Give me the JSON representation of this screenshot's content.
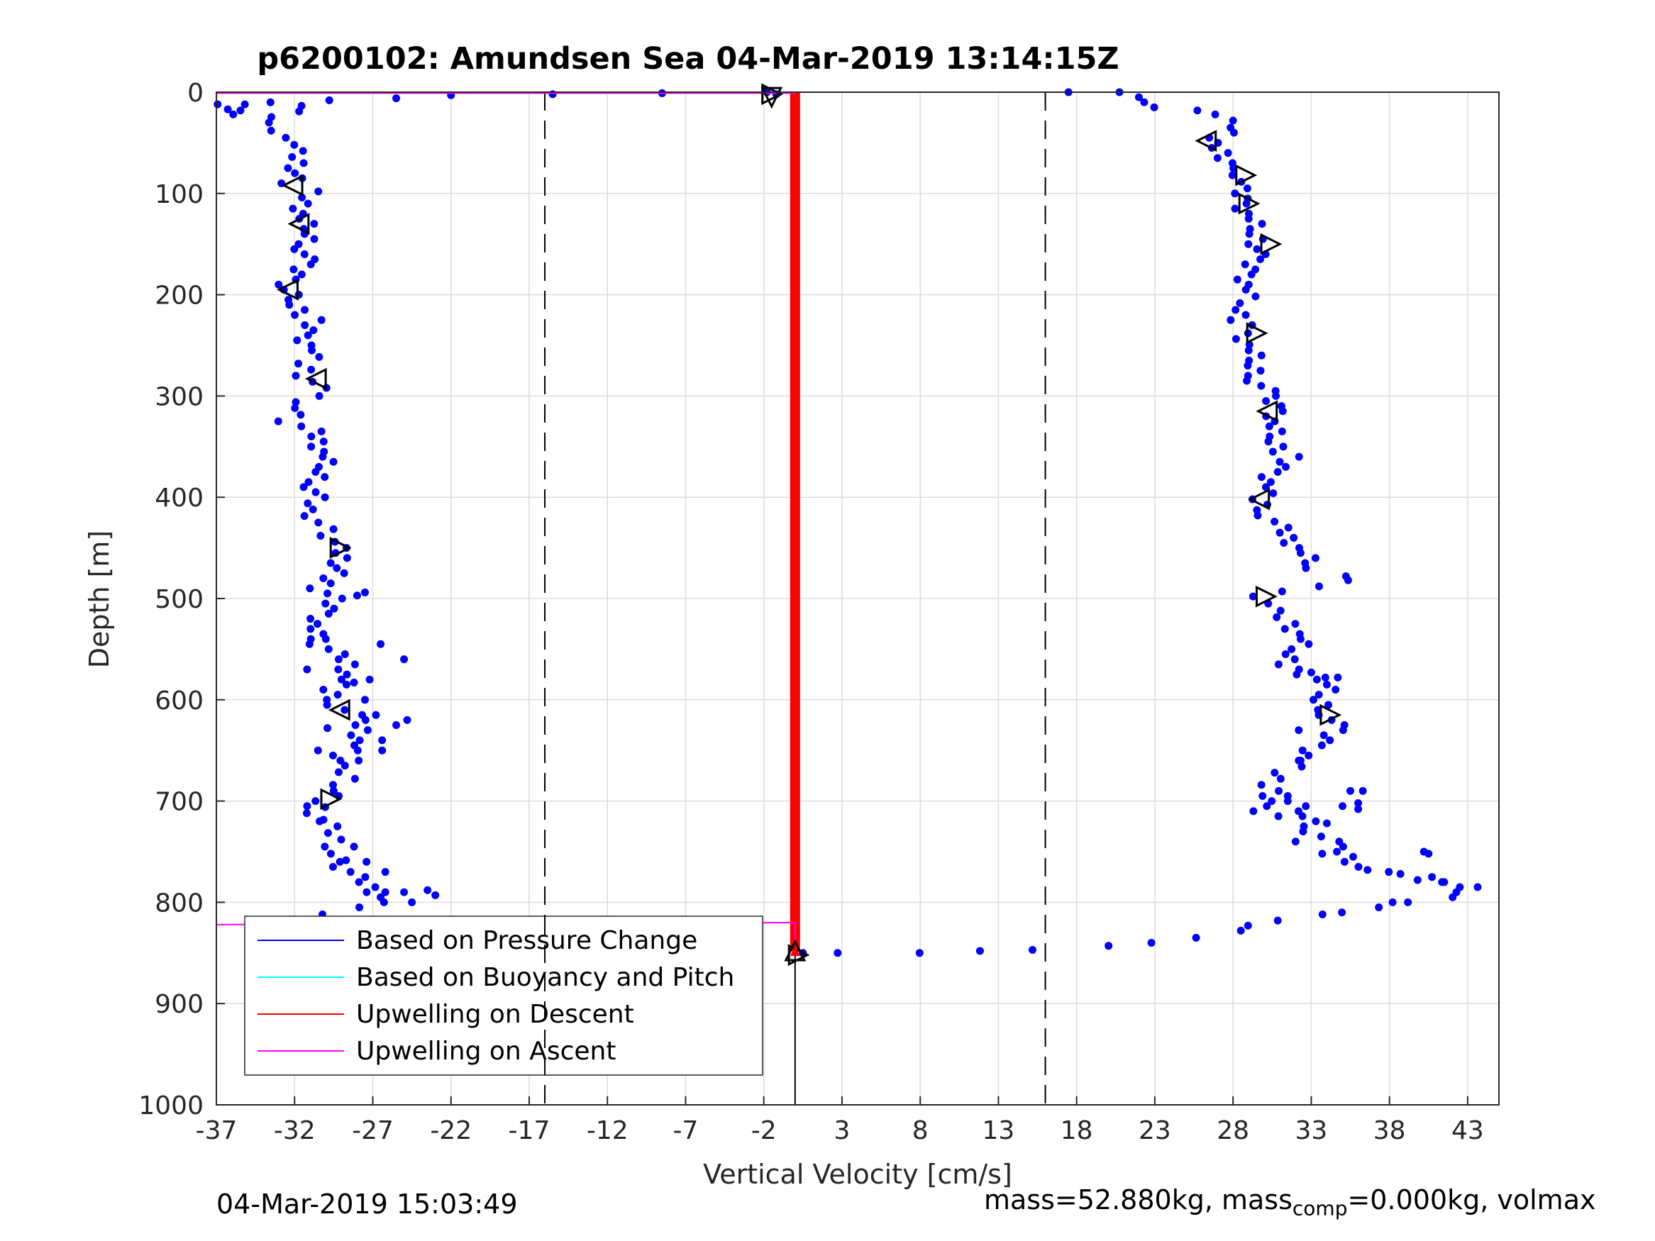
{
  "title": "p6200102: Amundsen Sea 04-Mar-2019 13:14:15Z",
  "footer": {
    "timestamp": "04-Mar-2019 15:03:49",
    "mass_text": "mass=52.880kg, mass",
    "mass_sub": "comp",
    "mass_rest": "=0.000kg, volmax"
  },
  "colors": {
    "pressure": "#0000ff",
    "buoyancy": "#00ffff",
    "upwelling_descent": "#ff0000",
    "upwelling_ascent": "#ff00ff",
    "markers": "#000000",
    "grid": "#dddddd"
  },
  "chart_data": {
    "type": "scatter",
    "title": "p6200102: Amundsen Sea 04-Mar-2019 13:14:15Z",
    "xlabel": "Vertical Velocity [cm/s]",
    "ylabel": "Depth [m]",
    "xlim": [
      -37,
      45
    ],
    "ylim": [
      0,
      1000
    ],
    "y_reversed": true,
    "xticks": [
      "-37",
      "-32",
      "-27",
      "-22",
      "-17",
      "-12",
      "-7",
      "-2",
      "3",
      "8",
      "13",
      "18",
      "23",
      "28",
      "33",
      "38",
      "43"
    ],
    "yticks": [
      "0",
      "100",
      "200",
      "300",
      "400",
      "500",
      "600",
      "700",
      "800",
      "900",
      "1000"
    ],
    "grid": true,
    "legend_position": "lower-left",
    "legend": [
      {
        "label": "Based on Pressure Change",
        "color": "#0000ff"
      },
      {
        "label": "Based on Buoyancy and Pitch",
        "color": "#00ffff"
      },
      {
        "label": "Upwelling on Descent",
        "color": "#ff0000"
      },
      {
        "label": "Upwelling on Ascent",
        "color": "#ff00ff"
      }
    ],
    "reference_lines_x": [
      -16,
      16
    ],
    "descent_dive_profile": [
      [
        -36.2,
        12
      ],
      [
        -36,
        18
      ],
      [
        -36.1,
        22
      ],
      [
        -35,
        12
      ],
      [
        -33,
        10
      ],
      [
        -30.5,
        8
      ],
      [
        -34,
        30
      ],
      [
        -33.5,
        38
      ],
      [
        -32.2,
        45
      ],
      [
        -31.3,
        52
      ],
      [
        -32,
        58
      ],
      [
        -31.6,
        70
      ],
      [
        -31.8,
        80
      ],
      [
        -32.3,
        90
      ],
      [
        -31.2,
        98
      ],
      [
        -31.5,
        110
      ],
      [
        -31.7,
        125
      ],
      [
        -31,
        140
      ],
      [
        -31.3,
        155
      ],
      [
        -31.5,
        170
      ],
      [
        -32.1,
        185
      ],
      [
        -32.5,
        195
      ],
      [
        -31.8,
        210
      ],
      [
        -31,
        225
      ],
      [
        -31.5,
        240
      ],
      [
        -30.9,
        255
      ],
      [
        -31.4,
        268
      ],
      [
        -31.2,
        280
      ],
      [
        -30.5,
        292
      ],
      [
        -30.6,
        300
      ],
      [
        -31.8,
        312
      ],
      [
        -32.5,
        325
      ],
      [
        -31,
        335
      ],
      [
        -30.5,
        345
      ],
      [
        -30.2,
        360
      ],
      [
        -30.3,
        375
      ],
      [
        -30.7,
        390
      ],
      [
        -30.6,
        400
      ],
      [
        -31,
        412
      ],
      [
        -30.3,
        425
      ],
      [
        -29.8,
        438
      ],
      [
        -29.4,
        450
      ],
      [
        -29,
        460
      ],
      [
        -29.3,
        470
      ],
      [
        -29.8,
        480
      ],
      [
        -30.3,
        490
      ],
      [
        -29.5,
        500
      ],
      [
        -30,
        515
      ],
      [
        -30.8,
        530
      ],
      [
        -30.5,
        545
      ],
      [
        -29.5,
        555
      ],
      [
        -28.5,
        565
      ],
      [
        -29,
        580
      ],
      [
        -29.8,
        590
      ],
      [
        -29.2,
        605
      ],
      [
        -28,
        620
      ],
      [
        -27.5,
        630
      ],
      [
        -28,
        645
      ],
      [
        -29,
        655
      ],
      [
        -29.5,
        665
      ],
      [
        -28.5,
        678
      ],
      [
        -29.5,
        690
      ],
      [
        -30.3,
        700
      ],
      [
        -30.5,
        712
      ],
      [
        -29.8,
        725
      ],
      [
        -29.2,
        738
      ],
      [
        -29.5,
        752
      ],
      [
        -29,
        765
      ],
      [
        -28.2,
        775
      ],
      [
        -27.2,
        785
      ],
      [
        -26.5,
        795
      ],
      [
        -27.5,
        805
      ],
      [
        -29.5,
        812
      ],
      [
        -31,
        818
      ],
      [
        -31.8,
        825
      ],
      [
        -32,
        830
      ],
      [
        -30.5,
        835
      ],
      [
        -29.5,
        838
      ],
      [
        -28,
        842
      ],
      [
        -27,
        847
      ],
      [
        -26,
        848
      ]
    ],
    "descent_scatter": [
      [
        -25,
        560
      ],
      [
        -26.5,
        545
      ],
      [
        -27.2,
        580
      ],
      [
        -25.5,
        625
      ],
      [
        -24.8,
        620
      ],
      [
        -26.4,
        640
      ],
      [
        -27.5,
        600
      ],
      [
        -25,
        790
      ],
      [
        -23,
        793
      ],
      [
        -24.5,
        800
      ],
      [
        -23.5,
        788
      ],
      [
        -26.2,
        770
      ],
      [
        -28.2,
        583
      ],
      [
        -30,
        540
      ],
      [
        -31.2,
        570
      ],
      [
        -28,
        497
      ],
      [
        -27.5,
        494
      ],
      [
        -30.5,
        650
      ],
      [
        -27.9,
        660
      ],
      [
        -26.4,
        650
      ],
      [
        -26.8,
        615
      ],
      [
        -29.9,
        628
      ],
      [
        -30.4,
        720
      ],
      [
        -31.2,
        705
      ],
      [
        -28.2,
        745
      ],
      [
        -29.1,
        760
      ],
      [
        -27.4,
        760
      ],
      [
        -26.2,
        790
      ]
    ],
    "top_surface_points": [
      [
        -25.5,
        6
      ],
      [
        -22,
        3
      ],
      [
        -15.5,
        2
      ],
      [
        -8.5,
        1
      ],
      [
        -1.8,
        0
      ],
      [
        -1.2,
        2
      ]
    ],
    "ascent_climb_profile": [
      [
        18.2,
        0
      ],
      [
        20.2,
        0
      ],
      [
        21.8,
        5
      ],
      [
        22.5,
        10
      ],
      [
        23.5,
        15
      ],
      [
        25,
        18
      ],
      [
        26.5,
        22
      ],
      [
        28,
        28
      ],
      [
        28.2,
        35
      ],
      [
        27.2,
        45
      ],
      [
        26.5,
        50
      ],
      [
        27.5,
        60
      ],
      [
        28.2,
        75
      ],
      [
        28.5,
        82
      ],
      [
        28.2,
        95
      ],
      [
        28.5,
        110
      ],
      [
        29,
        125
      ],
      [
        29.4,
        140
      ],
      [
        29.7,
        150
      ],
      [
        29.2,
        165
      ],
      [
        29,
        180
      ],
      [
        29,
        195
      ],
      [
        28.7,
        215
      ],
      [
        28.5,
        230
      ],
      [
        28.6,
        238
      ],
      [
        29,
        255
      ],
      [
        29.3,
        270
      ],
      [
        29.6,
        285
      ],
      [
        30.2,
        300
      ],
      [
        31,
        315
      ],
      [
        30.5,
        330
      ],
      [
        30.8,
        345
      ],
      [
        31.5,
        360
      ],
      [
        30.5,
        375
      ],
      [
        30.1,
        390
      ],
      [
        29.6,
        402
      ],
      [
        30.3,
        418
      ],
      [
        31,
        430
      ],
      [
        31.7,
        440
      ],
      [
        32.5,
        455
      ],
      [
        33.2,
        470
      ],
      [
        34.5,
        478
      ],
      [
        35,
        482
      ],
      [
        33.5,
        488
      ],
      [
        31.5,
        493
      ],
      [
        30,
        498
      ],
      [
        30.5,
        512
      ],
      [
        31.8,
        525
      ],
      [
        32.5,
        540
      ],
      [
        31.9,
        555
      ],
      [
        31.5,
        570
      ],
      [
        33,
        580
      ],
      [
        34,
        585
      ],
      [
        33.5,
        600
      ],
      [
        34.2,
        615
      ],
      [
        34.5,
        630
      ],
      [
        33.5,
        645
      ],
      [
        32.5,
        660
      ],
      [
        31.2,
        672
      ],
      [
        30.2,
        690
      ],
      [
        29.8,
        705
      ],
      [
        31.5,
        700
      ],
      [
        32.8,
        715
      ],
      [
        33.2,
        730
      ],
      [
        34.5,
        745
      ],
      [
        35.5,
        755
      ],
      [
        36.2,
        765
      ],
      [
        38.5,
        770
      ],
      [
        40,
        775
      ],
      [
        41,
        780
      ],
      [
        42.5,
        785
      ],
      [
        44,
        785
      ],
      [
        43,
        790
      ],
      [
        41.5,
        795
      ],
      [
        39,
        800
      ],
      [
        37.5,
        805
      ],
      [
        35.5,
        810
      ],
      [
        33,
        812
      ],
      [
        30.5,
        818
      ],
      [
        28.5,
        828
      ],
      [
        26,
        835
      ],
      [
        23.5,
        840
      ],
      [
        19.5,
        843
      ],
      [
        15,
        847
      ],
      [
        12,
        848
      ],
      [
        8.5,
        850
      ],
      [
        2,
        850
      ],
      [
        0.5,
        850
      ]
    ],
    "ascent_scatter": [
      [
        35.5,
        690
      ],
      [
        33.7,
        752
      ],
      [
        36.3,
        690
      ],
      [
        35,
        705
      ],
      [
        34,
        722
      ],
      [
        36.6,
        768
      ],
      [
        32.2,
        660
      ],
      [
        31.5,
        695
      ],
      [
        30.9,
        715
      ],
      [
        32,
        740
      ],
      [
        36,
        708
      ],
      [
        34.7,
        578
      ],
      [
        33.9,
        578
      ],
      [
        32.2,
        630
      ],
      [
        29.3,
        710
      ],
      [
        33,
        573
      ],
      [
        36,
        702
      ],
      [
        38.7,
        772
      ],
      [
        40.2,
        750
      ],
      [
        40.5,
        752
      ],
      [
        41.5,
        780
      ],
      [
        39.8,
        778
      ],
      [
        38.2,
        800
      ]
    ],
    "triangle_markers": [
      {
        "x": -32.1,
        "y": 92,
        "dir": "left"
      },
      {
        "x": -31.7,
        "y": 130,
        "dir": "left"
      },
      {
        "x": -32.4,
        "y": 195,
        "dir": "left"
      },
      {
        "x": -30.6,
        "y": 283,
        "dir": "left"
      },
      {
        "x": -29.1,
        "y": 450,
        "dir": "right"
      },
      {
        "x": -29.1,
        "y": 610,
        "dir": "left"
      },
      {
        "x": -29.7,
        "y": 698,
        "dir": "right"
      },
      {
        "x": -1.5,
        "y": 2,
        "dir": "right"
      },
      {
        "x": -1.5,
        "y": 5,
        "dir": "down"
      },
      {
        "x": 26.3,
        "y": 48,
        "dir": "left"
      },
      {
        "x": 28.8,
        "y": 82,
        "dir": "right"
      },
      {
        "x": 29,
        "y": 110,
        "dir": "right"
      },
      {
        "x": 30.4,
        "y": 150,
        "dir": "right"
      },
      {
        "x": 29.5,
        "y": 238,
        "dir": "right"
      },
      {
        "x": 30.2,
        "y": 315,
        "dir": "left"
      },
      {
        "x": 29.7,
        "y": 402,
        "dir": "left"
      },
      {
        "x": 30.1,
        "y": 498,
        "dir": "right"
      },
      {
        "x": 34.2,
        "y": 615,
        "dir": "right"
      },
      {
        "x": 0,
        "y": 848,
        "dir": "up"
      },
      {
        "x": 0.2,
        "y": 852,
        "dir": "right"
      }
    ],
    "upwelling_descent_line": {
      "x": [
        0,
        0
      ],
      "y": [
        0,
        848
      ]
    },
    "upwelling_ascent_lines": [
      {
        "x": [
          -37,
          0
        ],
        "y": [
          1,
          1
        ]
      },
      {
        "x": [
          -37,
          0
        ],
        "y": [
          822,
          820
        ]
      },
      {
        "x": [
          0,
          0
        ],
        "y": [
          820,
          852
        ]
      }
    ],
    "vertical_line": {
      "x": 0,
      "y": [
        850,
        1000
      ]
    }
  }
}
